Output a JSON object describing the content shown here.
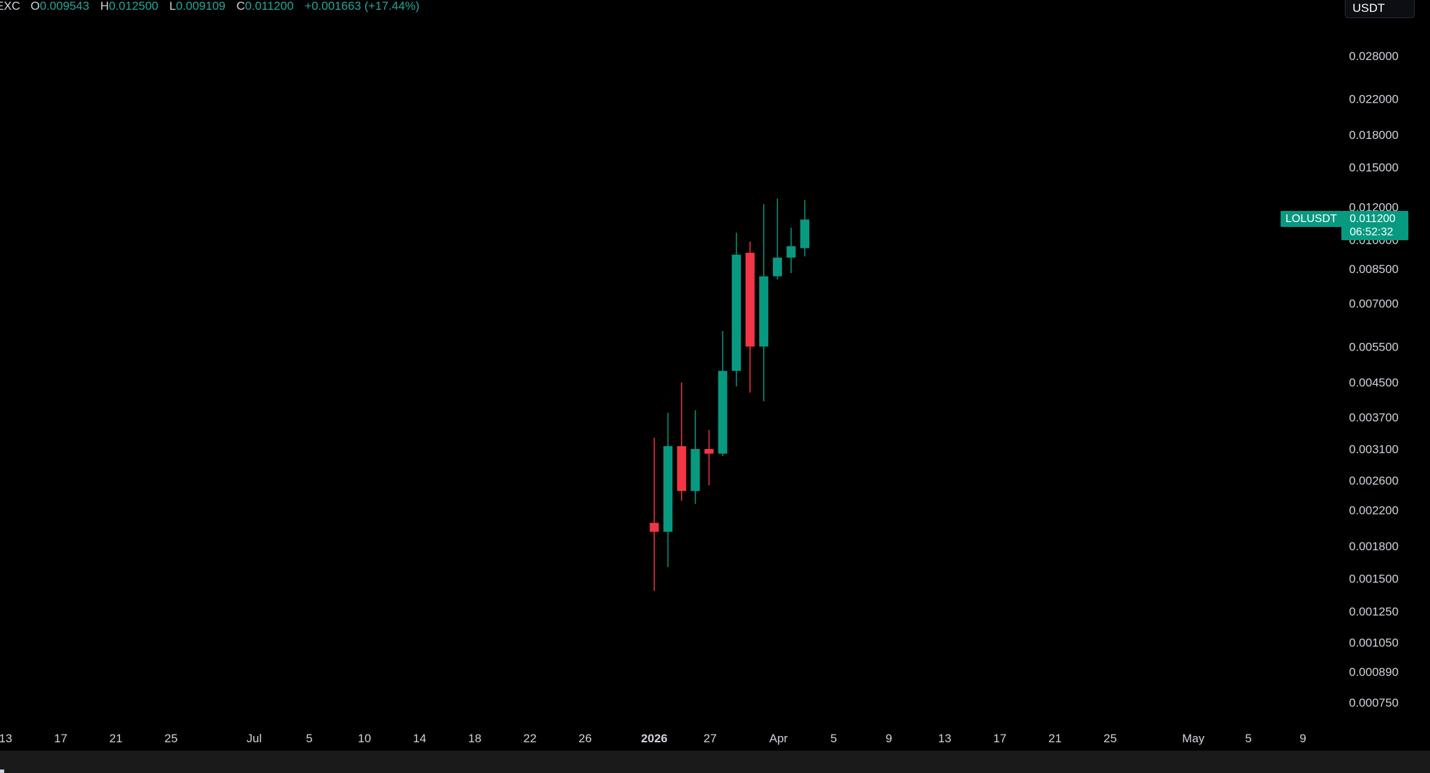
{
  "legend": {
    "exchange_fragment": "EXC",
    "open_label": "O",
    "open_value": "0.009543",
    "high_label": "H",
    "high_value": "0.012500",
    "low_label": "L",
    "low_value": "0.009109",
    "close_label": "C",
    "close_value": "0.011200",
    "change": "+0.001663 (+17.44%)"
  },
  "currency": "USDT",
  "last_price": {
    "symbol": "LOLUSDT",
    "price": "0.011200",
    "countdown": "06:52:32"
  },
  "colors": {
    "up": "#089981",
    "down": "#f23645",
    "background": "#000000",
    "axis_text": "#d1d4dc"
  },
  "chart_data": {
    "type": "candlestick",
    "scale": "log",
    "grid": false,
    "y_ticks": [
      "0.028000",
      "0.022000",
      "0.018000",
      "0.015000",
      "0.012000",
      "0.010000",
      "0.008500",
      "0.007000",
      "0.005500",
      "0.004500",
      "0.003700",
      "0.003100",
      "0.002600",
      "0.002200",
      "0.001800",
      "0.001500",
      "0.001250",
      "0.001050",
      "0.000890",
      "0.000750"
    ],
    "x_ticks": [
      {
        "label": "13",
        "bold": false
      },
      {
        "label": "17",
        "bold": false
      },
      {
        "label": "21",
        "bold": false
      },
      {
        "label": "25",
        "bold": false
      },
      {
        "label": "Jul",
        "bold": false
      },
      {
        "label": "5",
        "bold": false
      },
      {
        "label": "10",
        "bold": false
      },
      {
        "label": "14",
        "bold": false
      },
      {
        "label": "18",
        "bold": false
      },
      {
        "label": "22",
        "bold": false
      },
      {
        "label": "26",
        "bold": false
      },
      {
        "label": "2026",
        "bold": true
      },
      {
        "label": "27",
        "bold": false
      },
      {
        "label": "Apr",
        "bold": false
      },
      {
        "label": "5",
        "bold": false
      },
      {
        "label": "9",
        "bold": false
      },
      {
        "label": "13",
        "bold": false
      },
      {
        "label": "17",
        "bold": false
      },
      {
        "label": "21",
        "bold": false
      },
      {
        "label": "25",
        "bold": false
      },
      {
        "label": "May",
        "bold": false
      },
      {
        "label": "5",
        "bold": false
      },
      {
        "label": "9",
        "bold": false
      }
    ],
    "candles": [
      {
        "open": 0.00205,
        "high": 0.0033,
        "low": 0.0014,
        "close": 0.00195
      },
      {
        "open": 0.00195,
        "high": 0.0038,
        "low": 0.0016,
        "close": 0.00315
      },
      {
        "open": 0.00315,
        "high": 0.0045,
        "low": 0.00232,
        "close": 0.00245
      },
      {
        "open": 0.00245,
        "high": 0.00385,
        "low": 0.00228,
        "close": 0.0031
      },
      {
        "open": 0.0031,
        "high": 0.00345,
        "low": 0.00253,
        "close": 0.00302
      },
      {
        "open": 0.00302,
        "high": 0.006,
        "low": 0.00298,
        "close": 0.0048
      },
      {
        "open": 0.0048,
        "high": 0.0104,
        "low": 0.0044,
        "close": 0.0092
      },
      {
        "open": 0.0093,
        "high": 0.0099,
        "low": 0.00425,
        "close": 0.0055
      },
      {
        "open": 0.0055,
        "high": 0.0122,
        "low": 0.00405,
        "close": 0.00815
      },
      {
        "open": 0.00815,
        "high": 0.0126,
        "low": 0.008,
        "close": 0.00905
      },
      {
        "open": 0.00905,
        "high": 0.0107,
        "low": 0.0083,
        "close": 0.00965
      },
      {
        "open": 0.009543,
        "high": 0.0125,
        "low": 0.009109,
        "close": 0.0112
      }
    ]
  }
}
